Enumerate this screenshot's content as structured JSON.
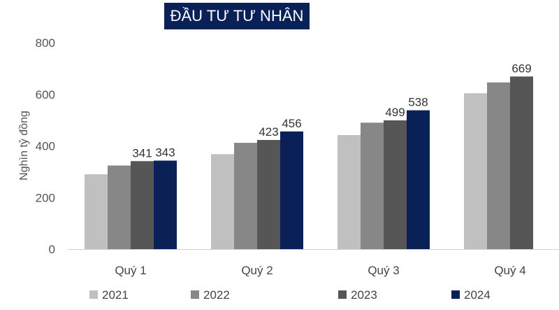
{
  "chart_data": {
    "type": "bar",
    "title": "ĐẦU TƯ TƯ NHÂN",
    "ylabel": "Nghìn tỷ đồng",
    "xlabel": "",
    "ylim": [
      0,
      800
    ],
    "yticks": [
      0,
      200,
      400,
      600,
      800
    ],
    "grid": false,
    "legend_position": "bottom",
    "categories": [
      "Quý 1",
      "Quý 2",
      "Quý 3",
      "Quý 4"
    ],
    "series": [
      {
        "name": "2021",
        "color": "#c0c0c0",
        "values": [
          290,
          368,
          442,
          604
        ],
        "labels": [
          null,
          null,
          null,
          null
        ]
      },
      {
        "name": "2022",
        "color": "#878787",
        "values": [
          324,
          412,
          490,
          646
        ],
        "labels": [
          null,
          null,
          null,
          null
        ]
      },
      {
        "name": "2023",
        "color": "#565656",
        "values": [
          341,
          423,
          499,
          669
        ],
        "labels": [
          "341",
          "423",
          "499",
          "669"
        ]
      },
      {
        "name": "2024",
        "color": "#0a2158",
        "values": [
          343,
          456,
          538,
          null
        ],
        "labels": [
          "343",
          "456",
          "538",
          null
        ]
      }
    ]
  }
}
